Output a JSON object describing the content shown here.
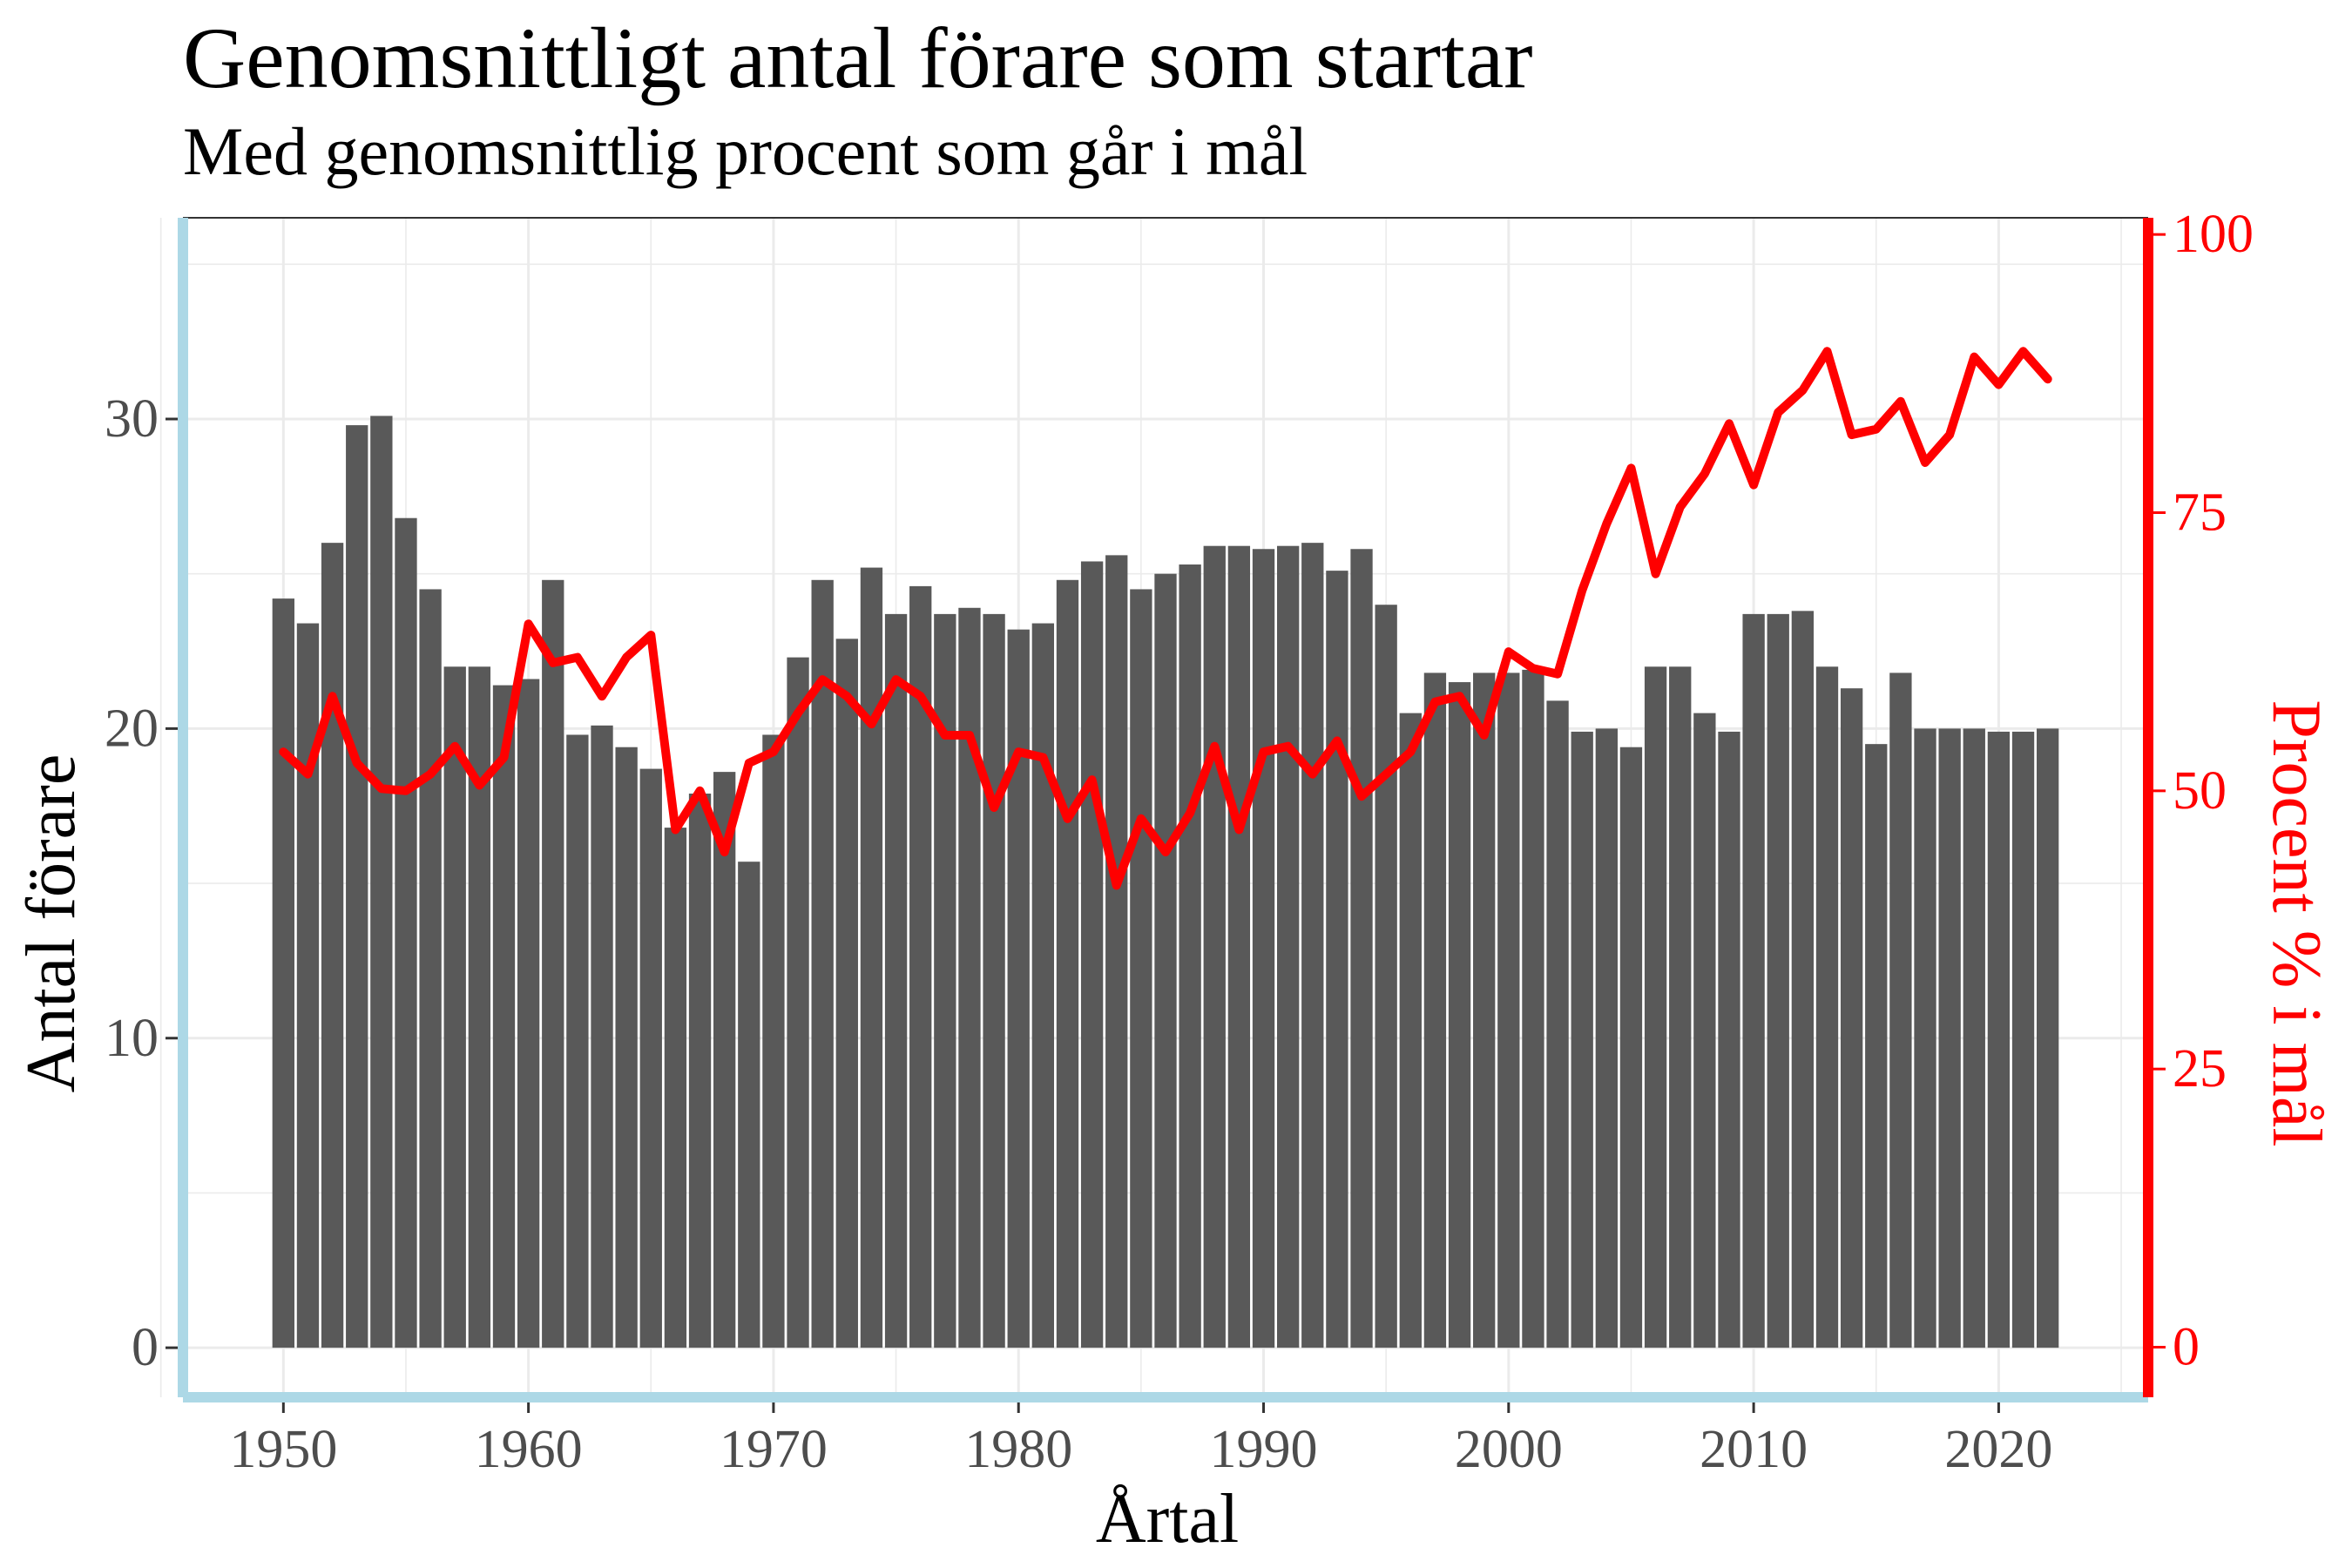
{
  "chart_data": {
    "type": "bar+line",
    "title": "Genomsnittligt antal förare som startar",
    "subtitle": "Med genomsnittlig procent som går i mål",
    "xlabel": "Årtal",
    "ylabel": "Antal förare",
    "ylabel_right": "Procent % i mål",
    "x_ticks": [
      1950,
      1960,
      1970,
      1980,
      1990,
      2000,
      2010,
      2020
    ],
    "y_ticks": [
      0,
      10,
      20,
      30
    ],
    "y_right_ticks": [
      0,
      25,
      50,
      75,
      100
    ],
    "xlim": [
      1945.9,
      2026.1
    ],
    "ylim": [
      -1.6,
      36.5
    ],
    "ylim_right": [
      -4.5,
      101.5
    ],
    "grid": true,
    "colors": {
      "bars": "#595959",
      "line": "#ff0000",
      "left_axis": "#add8e6",
      "right_axis": "#ff0000",
      "grid": "#ebebeb"
    },
    "years": [
      1950,
      1951,
      1952,
      1953,
      1954,
      1955,
      1956,
      1957,
      1958,
      1959,
      1960,
      1961,
      1962,
      1963,
      1964,
      1965,
      1966,
      1967,
      1968,
      1969,
      1970,
      1971,
      1972,
      1973,
      1974,
      1975,
      1976,
      1977,
      1978,
      1979,
      1980,
      1981,
      1982,
      1983,
      1984,
      1985,
      1986,
      1987,
      1988,
      1989,
      1990,
      1991,
      1992,
      1993,
      1994,
      1995,
      1996,
      1997,
      1998,
      1999,
      2000,
      2001,
      2002,
      2003,
      2004,
      2005,
      2006,
      2007,
      2008,
      2009,
      2010,
      2011,
      2012,
      2013,
      2014,
      2015,
      2016,
      2017,
      2018,
      2019,
      2020,
      2021,
      2022
    ],
    "series": [
      {
        "name": "Antal förare",
        "type": "bar",
        "axis": "left",
        "values": [
          24.2,
          23.4,
          26.0,
          29.8,
          30.1,
          26.8,
          24.5,
          22.0,
          22.0,
          21.4,
          21.6,
          24.8,
          19.8,
          20.1,
          19.4,
          18.7,
          16.8,
          17.9,
          18.6,
          15.7,
          19.8,
          22.3,
          24.8,
          22.9,
          25.2,
          23.7,
          24.6,
          23.7,
          23.9,
          23.7,
          23.2,
          23.4,
          24.8,
          25.4,
          25.6,
          24.5,
          25.0,
          25.3,
          25.9,
          25.9,
          25.8,
          25.9,
          26.0,
          25.1,
          25.8,
          24.0,
          20.5,
          21.8,
          21.5,
          21.8,
          21.8,
          21.9,
          20.9,
          19.9,
          20.0,
          19.4,
          22.0,
          22.0,
          20.5,
          19.9,
          23.7,
          23.7,
          23.8,
          22.0,
          21.3,
          19.5,
          21.8,
          20.0,
          20.0,
          20.0,
          19.9,
          19.9,
          20.0
        ]
      },
      {
        "name": "Procent % i mål",
        "type": "line",
        "axis": "right",
        "values": [
          53.5,
          51.5,
          58.5,
          52.5,
          50.2,
          50.0,
          51.5,
          54.0,
          50.5,
          53.0,
          65.0,
          61.5,
          62.0,
          58.5,
          62.0,
          64.0,
          46.5,
          50.0,
          44.5,
          52.5,
          53.5,
          57.0,
          60.0,
          58.5,
          56.0,
          60.0,
          58.5,
          55.0,
          55.0,
          48.5,
          53.5,
          53.0,
          47.5,
          51.0,
          41.5,
          47.5,
          44.5,
          48.0,
          54.0,
          46.5,
          53.5,
          54.0,
          51.5,
          54.5,
          49.5,
          51.5,
          53.5,
          58.0,
          58.5,
          55.0,
          62.5,
          61.0,
          60.5,
          68.0,
          74.0,
          79.0,
          69.5,
          75.5,
          78.5,
          83.0,
          77.5,
          84.0,
          86.0,
          89.5,
          82.0,
          82.5,
          85.0,
          79.5,
          82.0,
          89.0,
          86.5,
          89.5,
          87.0
        ]
      }
    ]
  }
}
